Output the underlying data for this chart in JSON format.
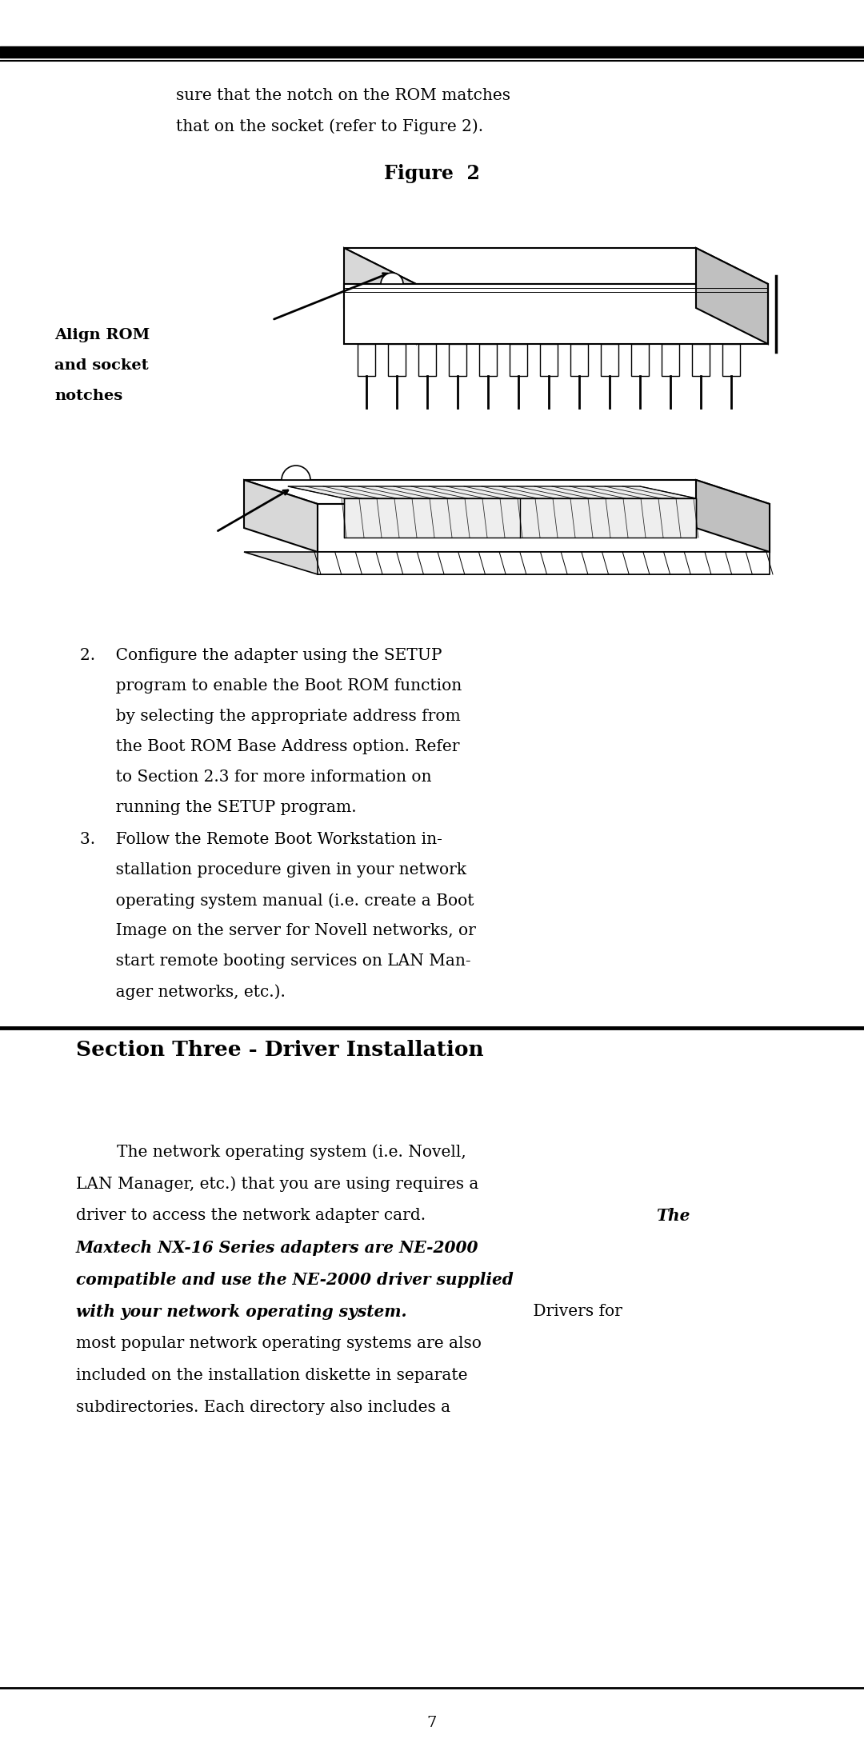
{
  "bg_color": "#ffffff",
  "page_width": 10.8,
  "page_height": 21.99,
  "dpi": 100,
  "intro_line1": "sure that the notch on the ROM matches",
  "intro_line2": "that on the socket (refer to Figure 2).",
  "figure_label": "Figure  2",
  "align_line1": "Align ROM",
  "align_line2": "and socket",
  "align_line3": "notches",
  "item2": [
    "2.    Configure the adapter using the SETUP",
    "       program to enable the Boot ROM function",
    "       by selecting the appropriate address from",
    "       the Boot ROM Base Address option. Refer",
    "       to Section 2.3 for more information on",
    "       running the SETUP program."
  ],
  "item3": [
    "3.    Follow the Remote Boot Workstation in-",
    "       stallation procedure given in your network",
    "       operating system manual (i.e. create a Boot",
    "       Image on the server for Novell networks, or",
    "       start remote booting services on LAN Man-",
    "       ager networks, etc.)."
  ],
  "section_title": "Section Three - Driver Installation",
  "body1": "        The network operating system (i.e. Novell,",
  "body2": "LAN Manager, etc.) that you are using requires a",
  "body3_norm": "driver to access the network adapter card. ",
  "body3_bold": "The",
  "body4_bold": "Maxtech NX-16 Series adapters are NE-2000",
  "body5_bold": "compatible and use the NE-2000 driver supplied",
  "body6_bold": "with your network operating system.",
  "body6_norm": " Drivers for",
  "body7": "most popular network operating systems are also",
  "body8": "included on the installation diskette in separate",
  "body9": "subdirectories. Each directory also includes a",
  "page_number": "7"
}
